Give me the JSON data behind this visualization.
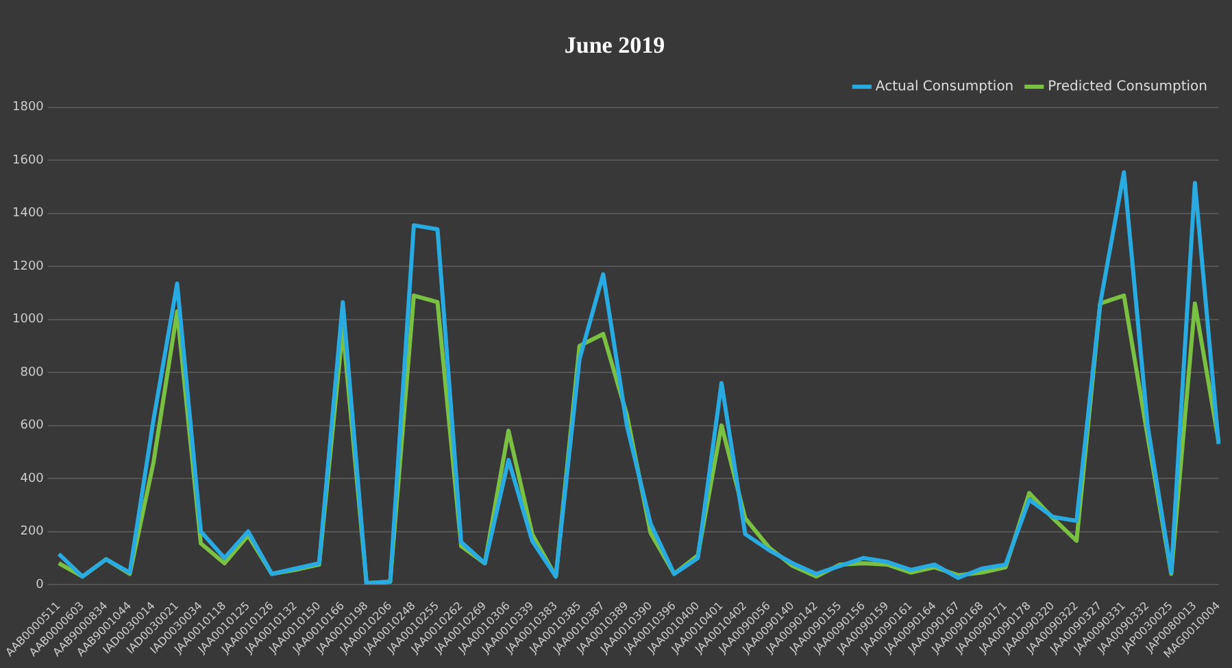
{
  "chart_data": {
    "type": "line",
    "title": "June 2019",
    "categories": [
      "AAB0000511",
      "AAB0000603",
      "AAB9000834",
      "AAB9001044",
      "IAD0030014",
      "IAD0030021",
      "IAD0030034",
      "JAA0010118",
      "JAA0010125",
      "JAA0010126",
      "JAA0010132",
      "JAA0010150",
      "JAA0010166",
      "JAA0010198",
      "JAA0010206",
      "JAA0010248",
      "JAA0010255",
      "JAA0010262",
      "JAA0010269",
      "JAA0010306",
      "JAA0010339",
      "JAA0010383",
      "JAA0010385",
      "JAA0010387",
      "JAA0010389",
      "JAA0010390",
      "JAA0010396",
      "JAA0010400",
      "JAA0010401",
      "JAA0010402",
      "JAA0090056",
      "JAA0090140",
      "JAA0090142",
      "JAA0090155",
      "JAA0090156",
      "JAA0090159",
      "JAA0090161",
      "JAA0090164",
      "JAA0090167",
      "JAA0090168",
      "JAA0090171",
      "JAA0090178",
      "JAA0090320",
      "JAA0090322",
      "JAA0090327",
      "JAA0090331",
      "JAA0090332",
      "JAP0030025",
      "JAP0080013",
      "MAG0010004"
    ],
    "series": [
      {
        "name": "Actual Consumption",
        "color": "#29abe2",
        "values": [
          115,
          30,
          95,
          45,
          620,
          1135,
          200,
          100,
          200,
          40,
          60,
          80,
          1065,
          5,
          10,
          1355,
          1340,
          160,
          80,
          470,
          165,
          30,
          850,
          1170,
          600,
          230,
          40,
          100,
          760,
          190,
          130,
          80,
          40,
          70,
          100,
          85,
          55,
          75,
          25,
          60,
          75,
          320,
          255,
          240,
          1060,
          1555,
          600,
          45,
          1515,
          530
        ]
      },
      {
        "name": "Predicted Consumption",
        "color": "#7ac143",
        "values": [
          80,
          30,
          95,
          40,
          460,
          1030,
          155,
          80,
          185,
          40,
          55,
          75,
          965,
          5,
          10,
          1090,
          1065,
          145,
          80,
          580,
          190,
          30,
          900,
          945,
          640,
          195,
          40,
          110,
          600,
          250,
          140,
          70,
          30,
          75,
          80,
          75,
          45,
          65,
          35,
          45,
          65,
          345,
          250,
          165,
          1060,
          1090,
          560,
          40,
          1060,
          540
        ]
      }
    ],
    "ylim": [
      0,
      1800
    ],
    "yticks": [
      0,
      200,
      400,
      600,
      800,
      1000,
      1200,
      1400,
      1600,
      1800
    ],
    "grid": "y",
    "legend": "top right",
    "marker": "none",
    "line_style": "solid"
  }
}
